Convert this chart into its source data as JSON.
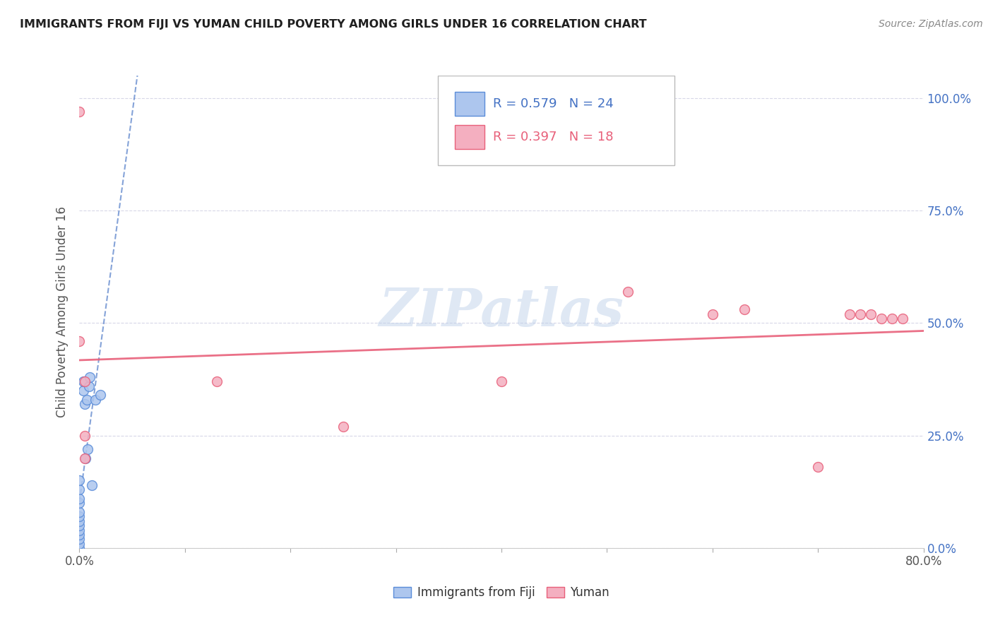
{
  "title": "IMMIGRANTS FROM FIJI VS YUMAN CHILD POVERTY AMONG GIRLS UNDER 16 CORRELATION CHART",
  "source": "Source: ZipAtlas.com",
  "ylabel": "Child Poverty Among Girls Under 16",
  "watermark": "ZIPatlas",
  "xlim": [
    0.0,
    0.8
  ],
  "ylim": [
    0.0,
    1.05
  ],
  "x_ticks": [
    0.0,
    0.1,
    0.2,
    0.3,
    0.4,
    0.5,
    0.6,
    0.7,
    0.8
  ],
  "y_ticks": [
    0.0,
    0.25,
    0.5,
    0.75,
    1.0
  ],
  "y_tick_labels": [
    "0.0%",
    "25.0%",
    "50.0%",
    "75.0%",
    "100.0%"
  ],
  "fiji_x": [
    0.0,
    0.0,
    0.0,
    0.0,
    0.0,
    0.0,
    0.0,
    0.0,
    0.0,
    0.0,
    0.0,
    0.0,
    0.0,
    0.004,
    0.004,
    0.005,
    0.006,
    0.007,
    0.008,
    0.009,
    0.01,
    0.012,
    0.015,
    0.02
  ],
  "fiji_y": [
    0.0,
    0.01,
    0.02,
    0.03,
    0.04,
    0.05,
    0.06,
    0.07,
    0.08,
    0.1,
    0.11,
    0.13,
    0.15,
    0.35,
    0.37,
    0.32,
    0.2,
    0.33,
    0.22,
    0.36,
    0.38,
    0.14,
    0.33,
    0.34
  ],
  "yuman_x": [
    0.0,
    0.0,
    0.005,
    0.005,
    0.13,
    0.25,
    0.4,
    0.52,
    0.6,
    0.63,
    0.7,
    0.73,
    0.74,
    0.75,
    0.76,
    0.77,
    0.78,
    0.005
  ],
  "yuman_y": [
    0.97,
    0.46,
    0.37,
    0.2,
    0.37,
    0.27,
    0.37,
    0.57,
    0.52,
    0.53,
    0.18,
    0.52,
    0.52,
    0.52,
    0.51,
    0.51,
    0.51,
    0.25
  ],
  "fiji_color": "#adc6ee",
  "yuman_color": "#f4afc0",
  "fiji_edge_color": "#5b8dd9",
  "yuman_edge_color": "#e8607a",
  "fiji_line_color": "#4472c4",
  "yuman_line_color": "#e8607a",
  "fiji_r": 0.579,
  "fiji_n": 24,
  "yuman_r": 0.397,
  "yuman_n": 18,
  "legend_label_1": "Immigrants from Fiji",
  "legend_label_2": "Yuman",
  "grid_color": "#d8d8e8",
  "background_color": "#ffffff",
  "title_color": "#202020",
  "source_color": "#888888",
  "right_tick_color": "#4472c4",
  "marker_size": 100
}
